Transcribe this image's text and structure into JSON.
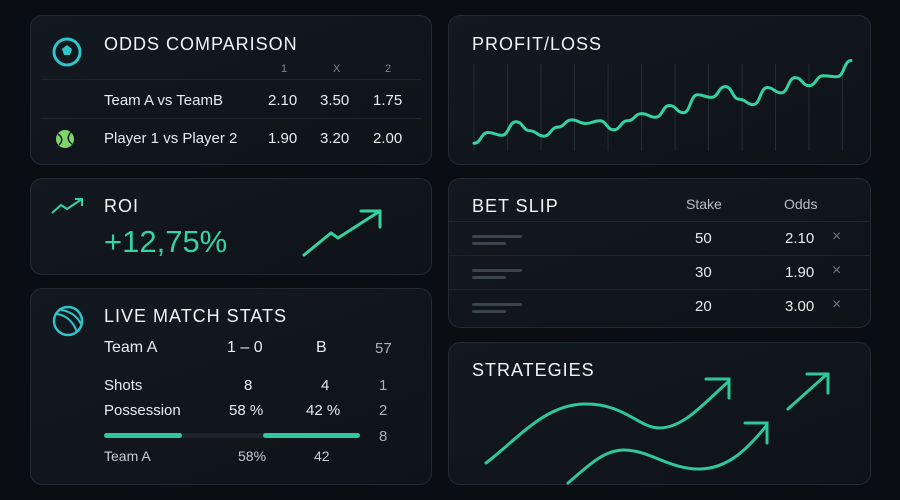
{
  "colors": {
    "accent": "#34d3a0",
    "background": "#0a0e13",
    "card": "#12181e"
  },
  "odds": {
    "title": "ODDS COMPARISON",
    "headers": [
      "1",
      "X",
      "2"
    ],
    "rows": [
      {
        "icon": "soccer-ball-icon",
        "match": "Team A vs TeamB",
        "odds": [
          "2.10",
          "3.50",
          "1.75"
        ]
      },
      {
        "icon": "tennis-ball-icon",
        "match": "Player 1 vs Player 2",
        "odds": [
          "1.90",
          "3.20",
          "2.00"
        ]
      }
    ]
  },
  "roi": {
    "title": "ROI",
    "value": "+12,75%",
    "icon": "trending-up-icon"
  },
  "live": {
    "title": "LIVE MATCH STATS",
    "icon": "ball-icon",
    "header": {
      "team_a": "Team A",
      "score": "1 – 0",
      "team_b": "B",
      "minute": "57"
    },
    "stats": [
      {
        "label": "Shots",
        "a": "8",
        "b": "4",
        "side": "1"
      },
      {
        "label": "Possession",
        "a": "58 %",
        "b": "42 %",
        "side": "2"
      }
    ],
    "bar": {
      "a_percent": 58,
      "b_percent": 42,
      "side": "8"
    },
    "footer": {
      "team": "Team A",
      "a": "58%",
      "b": "42"
    }
  },
  "profit": {
    "title": "PROFIT/LOSS"
  },
  "chart_data": {
    "type": "line",
    "title": "PROFIT/LOSS",
    "grid": "vertical",
    "series": [
      {
        "values": [
          3,
          15,
          12,
          27,
          17,
          11,
          21,
          29,
          25,
          28,
          18,
          28,
          36,
          32,
          45,
          37,
          57,
          54,
          66,
          52,
          46,
          65,
          59,
          76,
          67,
          78,
          77,
          95
        ]
      }
    ]
  },
  "betslip": {
    "title": "BET SLIP",
    "headers": {
      "stake": "Stake",
      "odds": "Odds"
    },
    "rows": [
      {
        "stake": "50",
        "odds": "2.10"
      },
      {
        "stake": "30",
        "odds": "1.90"
      },
      {
        "stake": "20",
        "odds": "3.00"
      }
    ],
    "remove_icon": "close-icon"
  },
  "strategies": {
    "title": "STRATEGIES"
  }
}
